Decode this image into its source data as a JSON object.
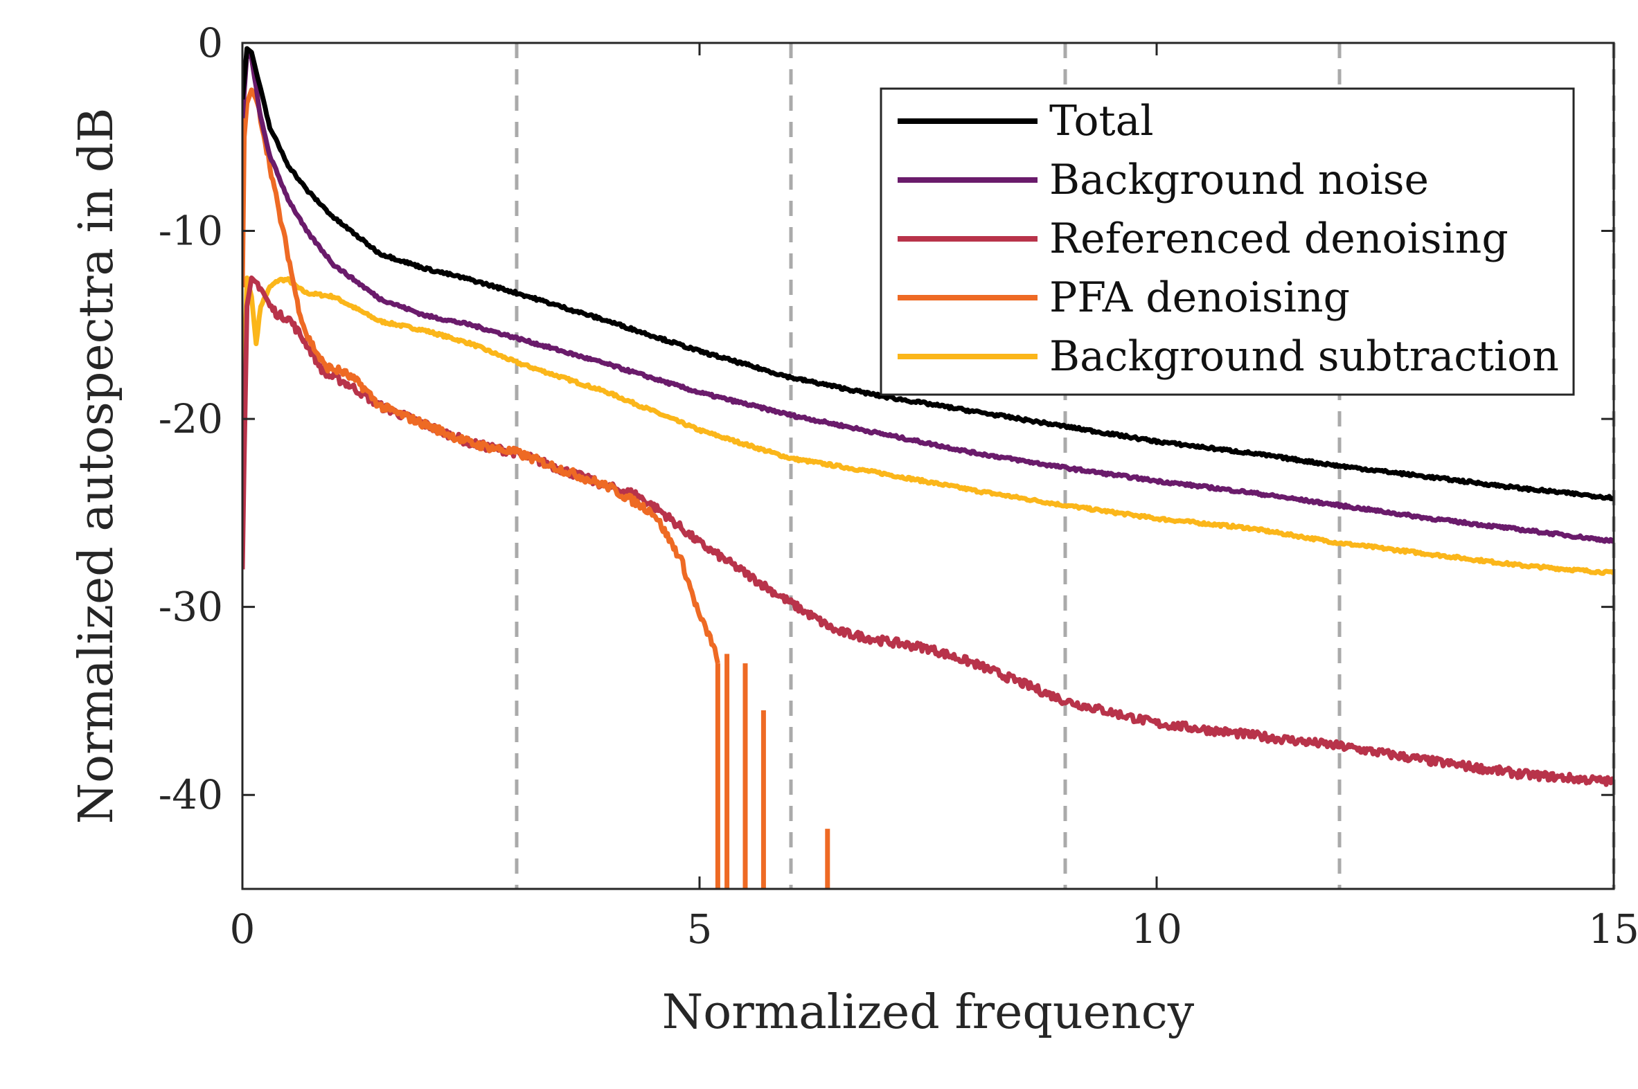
{
  "chart_data": {
    "type": "line",
    "title": "",
    "xlabel": "Normalized frequency",
    "ylabel": "Normalized autospectra in dB",
    "xlim": [
      0,
      15
    ],
    "ylim": [
      -45,
      0
    ],
    "xticks": [
      0,
      5,
      10,
      15
    ],
    "yticks": [
      0,
      -10,
      -20,
      -30,
      -40
    ],
    "xtick_labels": [
      "0",
      "5",
      "10",
      "15"
    ],
    "ytick_labels": [
      "0",
      "-10",
      "-20",
      "-30",
      "-40"
    ],
    "vertical_dashed_lines": [
      3,
      6,
      9,
      12,
      15
    ],
    "grid": false,
    "legend_position": "top-right",
    "series": [
      {
        "name": "Total",
        "color": "#000000",
        "x": [
          0,
          0.05,
          0.1,
          0.2,
          0.3,
          0.5,
          0.7,
          1.0,
          1.5,
          2.0,
          2.5,
          3.0,
          4.0,
          5.0,
          6.0,
          7.0,
          8.0,
          9.0,
          10.0,
          11.0,
          12.0,
          13.0,
          14.0,
          15.0
        ],
        "y": [
          -3,
          -0.3,
          -0.5,
          -2.5,
          -4.5,
          -6.5,
          -7.8,
          -9.3,
          -11.2,
          -12.0,
          -12.6,
          -13.3,
          -14.8,
          -16.4,
          -17.8,
          -18.8,
          -19.6,
          -20.4,
          -21.2,
          -21.8,
          -22.5,
          -23.1,
          -23.7,
          -24.2
        ]
      },
      {
        "name": "Background noise",
        "color": "#6a1b6b",
        "x": [
          0,
          0.05,
          0.1,
          0.2,
          0.3,
          0.5,
          0.7,
          1.0,
          1.5,
          2.0,
          2.5,
          3.0,
          4.0,
          5.0,
          6.0,
          7.0,
          8.0,
          9.0,
          10.0,
          11.0,
          12.0,
          13.0,
          14.0,
          15.0
        ],
        "y": [
          -4,
          -0.5,
          -0.8,
          -4.0,
          -6.0,
          -8.3,
          -10.0,
          -11.8,
          -13.6,
          -14.5,
          -15.0,
          -15.7,
          -17.1,
          -18.6,
          -19.8,
          -20.8,
          -21.8,
          -22.6,
          -23.3,
          -23.9,
          -24.6,
          -25.3,
          -25.9,
          -26.5
        ]
      },
      {
        "name": "Referenced denoising",
        "color": "#b8334a",
        "x": [
          0,
          0.02,
          0.05,
          0.1,
          0.2,
          0.3,
          0.4,
          0.5,
          0.7,
          0.9,
          1.1,
          1.3,
          1.5,
          2.0,
          2.5,
          3.0,
          3.5,
          4.0,
          4.3,
          4.6,
          5.0,
          5.5,
          6.0,
          6.5,
          7.0,
          7.5,
          8.0,
          8.5,
          9.0,
          9.5,
          10.0,
          11.0,
          12.0,
          13.0,
          14.0,
          15.0
        ],
        "y": [
          -28,
          -22,
          -14,
          -12.5,
          -13.0,
          -14.0,
          -14.5,
          -14.6,
          -16.0,
          -17.6,
          -18.0,
          -18.6,
          -19.3,
          -20.3,
          -21.3,
          -21.8,
          -22.7,
          -23.6,
          -24.0,
          -25.0,
          -26.6,
          -28.2,
          -29.8,
          -31.3,
          -31.8,
          -32.2,
          -33.0,
          -34.0,
          -35.0,
          -35.6,
          -36.2,
          -36.8,
          -37.4,
          -38.2,
          -38.9,
          -39.3
        ]
      },
      {
        "name": "PFA denoising",
        "color": "#ee6a24",
        "x": [
          0,
          0.02,
          0.05,
          0.1,
          0.15,
          0.2,
          0.3,
          0.4,
          0.5,
          0.6,
          0.7,
          0.9,
          1.1,
          1.3,
          1.5,
          2.0,
          2.5,
          3.0,
          3.5,
          4.0,
          4.5,
          4.8,
          5.0,
          5.15,
          5.2
        ],
        "y": [
          -13,
          -5,
          -3.2,
          -2.5,
          -3.0,
          -4.0,
          -6.5,
          -9.0,
          -11.3,
          -13.8,
          -15.5,
          -17.2,
          -17.5,
          -18.2,
          -19.3,
          -20.3,
          -21.3,
          -21.8,
          -22.7,
          -23.6,
          -25.0,
          -27.5,
          -30.5,
          -32.0,
          -33.0
        ]
      },
      {
        "name": "Background subtraction",
        "color": "#fbb61a",
        "x": [
          0,
          0.03,
          0.05,
          0.1,
          0.15,
          0.2,
          0.3,
          0.4,
          0.5,
          0.6,
          0.7,
          1.0,
          1.5,
          2.0,
          2.5,
          3.0,
          3.5,
          4.0,
          5.0,
          6.0,
          7.0,
          8.0,
          9.0,
          10.0,
          11.0,
          12.0,
          13.0,
          14.0,
          15.0
        ],
        "y": [
          -22,
          -16,
          -12.5,
          -13.5,
          -16.0,
          -14.0,
          -13.0,
          -12.6,
          -12.6,
          -13.0,
          -13.3,
          -13.5,
          -14.8,
          -15.3,
          -16.0,
          -17.0,
          -17.8,
          -18.6,
          -20.6,
          -22.1,
          -22.9,
          -23.8,
          -24.6,
          -25.3,
          -25.8,
          -26.6,
          -27.2,
          -27.8,
          -28.2
        ]
      }
    ],
    "pfa_dropout_spikes": [
      {
        "x": 5.2,
        "y": -33.0
      },
      {
        "x": 5.3,
        "y": -32.5
      },
      {
        "x": 5.5,
        "y": -33.0
      },
      {
        "x": 5.7,
        "y": -35.5
      },
      {
        "x": 6.4,
        "y": -41.8
      }
    ]
  }
}
